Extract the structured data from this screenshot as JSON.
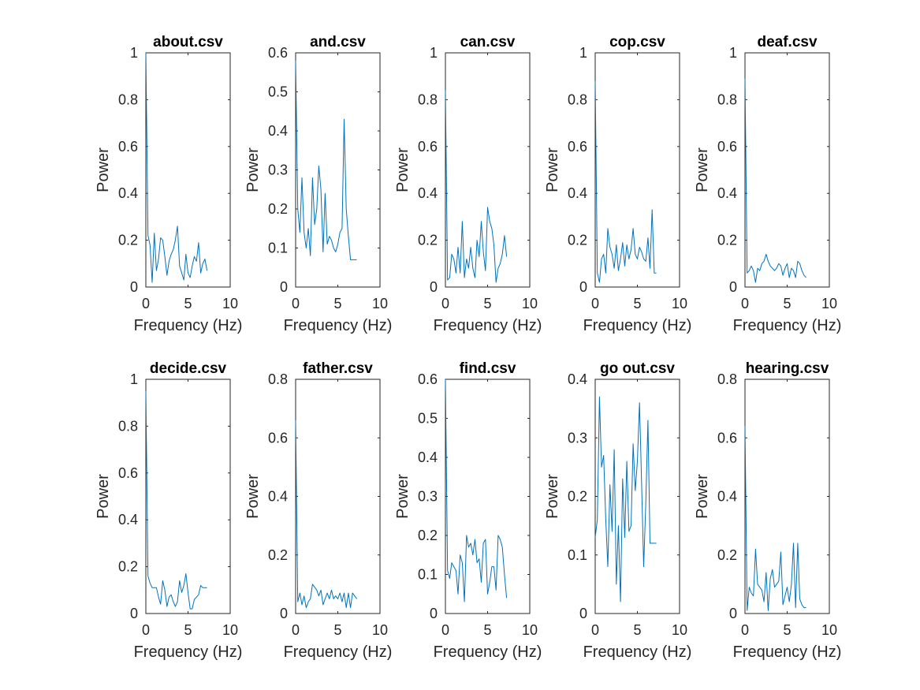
{
  "colors": {
    "line": "#0072BD",
    "axis": "#262626",
    "background": "#ffffff"
  },
  "chart_data": [
    {
      "type": "line",
      "title": "about.csv",
      "xlabel": "Frequency (Hz)",
      "ylabel": "Power",
      "xlim": [
        0,
        10
      ],
      "ylim": [
        0,
        1
      ],
      "xticks": [
        0,
        5,
        10
      ],
      "xtick_labels": [
        "0",
        "5",
        "10"
      ],
      "yticks": [
        0,
        0.2,
        0.4,
        0.6,
        0.8,
        1
      ],
      "ytick_labels": [
        "0",
        "0.2",
        "0.4",
        "0.6",
        "0.8",
        "1"
      ],
      "grid": false,
      "series": [
        {
          "x": [
            0,
            0.25,
            0.5,
            0.75,
            1.0,
            1.25,
            1.5,
            1.75,
            2.0,
            2.25,
            2.5,
            2.75,
            3.0,
            3.25,
            3.5,
            3.75,
            4.0,
            4.25,
            4.5,
            4.75,
            5.0,
            5.25,
            5.5,
            5.75,
            6.0,
            6.25,
            6.5,
            6.75,
            7.0,
            7.25
          ],
          "y": [
            1.0,
            0.22,
            0.18,
            0.02,
            0.23,
            0.07,
            0.12,
            0.21,
            0.2,
            0.13,
            0.05,
            0.11,
            0.14,
            0.16,
            0.2,
            0.26,
            0.09,
            0.06,
            0.03,
            0.14,
            0.06,
            0.04,
            0.09,
            0.13,
            0.11,
            0.19,
            0.06,
            0.1,
            0.12,
            0.07
          ]
        }
      ]
    },
    {
      "type": "line",
      "title": "and.csv",
      "xlabel": "Frequency (Hz)",
      "ylabel": "Power",
      "xlim": [
        0,
        10
      ],
      "ylim": [
        0,
        0.6
      ],
      "xticks": [
        0,
        5,
        10
      ],
      "xtick_labels": [
        "0",
        "5",
        "10"
      ],
      "yticks": [
        0,
        0.1,
        0.2,
        0.3,
        0.4,
        0.5,
        0.6
      ],
      "ytick_labels": [
        "0",
        "0.1",
        "0.2",
        "0.3",
        "0.4",
        "0.5",
        "0.6"
      ],
      "grid": false,
      "series": [
        {
          "x": [
            0,
            0.25,
            0.5,
            0.75,
            1.0,
            1.25,
            1.5,
            1.75,
            2.0,
            2.25,
            2.5,
            2.75,
            3.0,
            3.25,
            3.5,
            3.75,
            4.0,
            4.25,
            4.5,
            4.75,
            5.0,
            5.25,
            5.5,
            5.75,
            6.0,
            6.25,
            6.5,
            6.75,
            7.0,
            7.25
          ],
          "y": [
            0.58,
            0.2,
            0.14,
            0.28,
            0.14,
            0.1,
            0.15,
            0.08,
            0.28,
            0.16,
            0.2,
            0.31,
            0.25,
            0.09,
            0.24,
            0.11,
            0.13,
            0.12,
            0.1,
            0.09,
            0.11,
            0.14,
            0.15,
            0.43,
            0.2,
            0.13,
            0.07,
            0.07,
            0.07,
            0.07
          ]
        }
      ]
    },
    {
      "type": "line",
      "title": "can.csv",
      "xlabel": "Frequency (Hz)",
      "ylabel": "Power",
      "xlim": [
        0,
        10
      ],
      "ylim": [
        0,
        1
      ],
      "xticks": [
        0,
        5,
        10
      ],
      "xtick_labels": [
        "0",
        "5",
        "10"
      ],
      "yticks": [
        0,
        0.2,
        0.4,
        0.6,
        0.8,
        1
      ],
      "ytick_labels": [
        "0",
        "0.2",
        "0.4",
        "0.6",
        "0.8",
        "1"
      ],
      "grid": false,
      "series": [
        {
          "x": [
            0,
            0.25,
            0.5,
            0.75,
            1.0,
            1.25,
            1.5,
            1.75,
            2.0,
            2.25,
            2.5,
            2.75,
            3.0,
            3.25,
            3.5,
            3.75,
            4.0,
            4.25,
            4.5,
            4.75,
            5.0,
            5.25,
            5.5,
            5.75,
            6.0,
            6.25,
            6.5,
            6.75,
            7.0,
            7.25
          ],
          "y": [
            0.84,
            0.03,
            0.04,
            0.14,
            0.12,
            0.06,
            0.17,
            0.06,
            0.28,
            0.04,
            0.12,
            0.08,
            0.17,
            0.08,
            0.04,
            0.2,
            0.13,
            0.28,
            0.15,
            0.07,
            0.34,
            0.28,
            0.25,
            0.18,
            0.02,
            0.08,
            0.1,
            0.14,
            0.22,
            0.13
          ]
        }
      ]
    },
    {
      "type": "line",
      "title": "cop.csv",
      "xlabel": "Frequency (Hz)",
      "ylabel": "Power",
      "xlim": [
        0,
        10
      ],
      "ylim": [
        0,
        1
      ],
      "xticks": [
        0,
        5,
        10
      ],
      "xtick_labels": [
        "0",
        "5",
        "10"
      ],
      "yticks": [
        0,
        0.2,
        0.4,
        0.6,
        0.8,
        1
      ],
      "ytick_labels": [
        "0",
        "0.2",
        "0.4",
        "0.6",
        "0.8",
        "1"
      ],
      "grid": false,
      "series": [
        {
          "x": [
            0,
            0.25,
            0.5,
            0.75,
            1.0,
            1.25,
            1.5,
            1.75,
            2.0,
            2.25,
            2.5,
            2.75,
            3.0,
            3.25,
            3.5,
            3.75,
            4.0,
            4.25,
            4.5,
            4.75,
            5.0,
            5.25,
            5.5,
            5.75,
            6.0,
            6.25,
            6.5,
            6.75,
            7.0,
            7.25
          ],
          "y": [
            0.88,
            0.06,
            0.02,
            0.12,
            0.14,
            0.06,
            0.25,
            0.17,
            0.14,
            0.08,
            0.18,
            0.07,
            0.12,
            0.19,
            0.09,
            0.18,
            0.12,
            0.16,
            0.25,
            0.14,
            0.12,
            0.17,
            0.15,
            0.12,
            0.11,
            0.21,
            0.08,
            0.33,
            0.06,
            0.06
          ]
        }
      ]
    },
    {
      "type": "line",
      "title": "deaf.csv",
      "xlabel": "Frequency (Hz)",
      "ylabel": "Power",
      "xlim": [
        0,
        10
      ],
      "ylim": [
        0,
        1
      ],
      "xticks": [
        0,
        5,
        10
      ],
      "xtick_labels": [
        "0",
        "5",
        "10"
      ],
      "yticks": [
        0,
        0.2,
        0.4,
        0.6,
        0.8,
        1
      ],
      "ytick_labels": [
        "0",
        "0.2",
        "0.4",
        "0.6",
        "0.8",
        "1"
      ],
      "grid": false,
      "series": [
        {
          "x": [
            0,
            0.25,
            0.5,
            0.75,
            1.0,
            1.25,
            1.5,
            1.75,
            2.0,
            2.25,
            2.5,
            2.75,
            3.0,
            3.25,
            3.5,
            3.75,
            4.0,
            4.25,
            4.5,
            4.75,
            5.0,
            5.25,
            5.5,
            5.75,
            6.0,
            6.25,
            6.5,
            6.75,
            7.0,
            7.25
          ],
          "y": [
            0.89,
            0.06,
            0.07,
            0.09,
            0.07,
            0.02,
            0.08,
            0.07,
            0.1,
            0.11,
            0.14,
            0.11,
            0.09,
            0.08,
            0.07,
            0.08,
            0.1,
            0.09,
            0.05,
            0.08,
            0.1,
            0.04,
            0.08,
            0.07,
            0.04,
            0.11,
            0.1,
            0.07,
            0.05,
            0.04
          ]
        }
      ]
    },
    {
      "type": "line",
      "title": "decide.csv",
      "xlabel": "Frequency (Hz)",
      "ylabel": "Power",
      "xlim": [
        0,
        10
      ],
      "ylim": [
        0,
        1
      ],
      "xticks": [
        0,
        5,
        10
      ],
      "xtick_labels": [
        "0",
        "5",
        "10"
      ],
      "yticks": [
        0,
        0.2,
        0.4,
        0.6,
        0.8,
        1
      ],
      "ytick_labels": [
        "0",
        "0.2",
        "0.4",
        "0.6",
        "0.8",
        "1"
      ],
      "grid": false,
      "series": [
        {
          "x": [
            0,
            0.25,
            0.5,
            0.75,
            1.0,
            1.25,
            1.5,
            1.75,
            2.0,
            2.25,
            2.5,
            2.75,
            3.0,
            3.25,
            3.5,
            3.75,
            4.0,
            4.25,
            4.5,
            4.75,
            5.0,
            5.25,
            5.5,
            5.75,
            6.0,
            6.25,
            6.5,
            6.75,
            7.0,
            7.25
          ],
          "y": [
            0.95,
            0.16,
            0.13,
            0.11,
            0.11,
            0.11,
            0.07,
            0.04,
            0.14,
            0.1,
            0.03,
            0.07,
            0.08,
            0.05,
            0.03,
            0.05,
            0.14,
            0.09,
            0.12,
            0.17,
            0.09,
            0.02,
            0.02,
            0.06,
            0.07,
            0.08,
            0.12,
            0.11,
            0.11,
            0.11
          ]
        }
      ]
    },
    {
      "type": "line",
      "title": "father.csv",
      "xlabel": "Frequency (Hz)",
      "ylabel": "Power",
      "xlim": [
        0,
        10
      ],
      "ylim": [
        0,
        0.8
      ],
      "xticks": [
        0,
        5,
        10
      ],
      "xtick_labels": [
        "0",
        "5",
        "10"
      ],
      "yticks": [
        0,
        0.2,
        0.4,
        0.6,
        0.8
      ],
      "ytick_labels": [
        "0",
        "0.2",
        "0.4",
        "0.6",
        "0.8"
      ],
      "grid": false,
      "series": [
        {
          "x": [
            0,
            0.25,
            0.5,
            0.75,
            1.0,
            1.25,
            1.5,
            1.75,
            2.0,
            2.25,
            2.5,
            2.75,
            3.0,
            3.25,
            3.5,
            3.75,
            4.0,
            4.25,
            4.5,
            4.75,
            5.0,
            5.25,
            5.5,
            5.75,
            6.0,
            6.25,
            6.5,
            6.75,
            7.0,
            7.25
          ],
          "y": [
            0.66,
            0.04,
            0.07,
            0.03,
            0.06,
            0.02,
            0.04,
            0.05,
            0.1,
            0.09,
            0.08,
            0.06,
            0.08,
            0.03,
            0.05,
            0.07,
            0.05,
            0.08,
            0.05,
            0.06,
            0.05,
            0.07,
            0.04,
            0.07,
            0.02,
            0.07,
            0.02,
            0.07,
            0.06,
            0.05
          ]
        }
      ]
    },
    {
      "type": "line",
      "title": "find.csv",
      "xlabel": "Frequency (Hz)",
      "ylabel": "Power",
      "xlim": [
        0,
        10
      ],
      "ylim": [
        0,
        0.6
      ],
      "xticks": [
        0,
        5,
        10
      ],
      "xtick_labels": [
        "0",
        "5",
        "10"
      ],
      "yticks": [
        0,
        0.1,
        0.2,
        0.3,
        0.4,
        0.5,
        0.6
      ],
      "ytick_labels": [
        "0",
        "0.1",
        "0.2",
        "0.3",
        "0.4",
        "0.5",
        "0.6"
      ],
      "grid": false,
      "series": [
        {
          "x": [
            0,
            0.25,
            0.5,
            0.75,
            1.0,
            1.25,
            1.5,
            1.75,
            2.0,
            2.25,
            2.5,
            2.75,
            3.0,
            3.25,
            3.5,
            3.75,
            4.0,
            4.25,
            4.5,
            4.75,
            5.0,
            5.25,
            5.5,
            5.75,
            6.0,
            6.25,
            6.5,
            6.75,
            7.0,
            7.25
          ],
          "y": [
            0.6,
            0.11,
            0.09,
            0.13,
            0.12,
            0.11,
            0.05,
            0.15,
            0.13,
            0.03,
            0.2,
            0.17,
            0.18,
            0.15,
            0.19,
            0.13,
            0.14,
            0.08,
            0.18,
            0.19,
            0.05,
            0.08,
            0.12,
            0.12,
            0.06,
            0.2,
            0.19,
            0.17,
            0.1,
            0.04
          ]
        }
      ]
    },
    {
      "type": "line",
      "title": "go out.csv",
      "xlabel": "Frequency (Hz)",
      "ylabel": "Power",
      "xlim": [
        0,
        10
      ],
      "ylim": [
        0,
        0.4
      ],
      "xticks": [
        0,
        5,
        10
      ],
      "xtick_labels": [
        "0",
        "5",
        "10"
      ],
      "yticks": [
        0,
        0.1,
        0.2,
        0.3,
        0.4
      ],
      "ytick_labels": [
        "0",
        "0.1",
        "0.2",
        "0.3",
        "0.4"
      ],
      "grid": false,
      "series": [
        {
          "x": [
            0,
            0.25,
            0.5,
            0.75,
            1.0,
            1.25,
            1.5,
            1.75,
            2.0,
            2.25,
            2.5,
            2.75,
            3.0,
            3.25,
            3.5,
            3.75,
            4.0,
            4.25,
            4.5,
            4.75,
            5.0,
            5.25,
            5.5,
            5.75,
            6.0,
            6.25,
            6.5,
            6.75,
            7.0,
            7.25
          ],
          "y": [
            0.13,
            0.16,
            0.37,
            0.25,
            0.27,
            0.16,
            0.08,
            0.22,
            0.14,
            0.28,
            0.05,
            0.15,
            0.02,
            0.23,
            0.13,
            0.26,
            0.14,
            0.15,
            0.29,
            0.21,
            0.26,
            0.36,
            0.22,
            0.08,
            0.19,
            0.33,
            0.12,
            0.12,
            0.12,
            0.12
          ]
        }
      ]
    },
    {
      "type": "line",
      "title": "hearing.csv",
      "xlabel": "Frequency (Hz)",
      "ylabel": "Power",
      "xlim": [
        0,
        10
      ],
      "ylim": [
        0,
        0.8
      ],
      "xticks": [
        0,
        5,
        10
      ],
      "xtick_labels": [
        "0",
        "5",
        "10"
      ],
      "yticks": [
        0,
        0.2,
        0.4,
        0.6,
        0.8
      ],
      "ytick_labels": [
        "0",
        "0.2",
        "0.4",
        "0.6",
        "0.8"
      ],
      "grid": false,
      "series": [
        {
          "x": [
            0,
            0.25,
            0.5,
            0.75,
            1.0,
            1.25,
            1.5,
            1.75,
            2.0,
            2.25,
            2.5,
            2.75,
            3.0,
            3.25,
            3.5,
            3.75,
            4.0,
            4.25,
            4.5,
            4.75,
            5.0,
            5.25,
            5.5,
            5.75,
            6.0,
            6.25,
            6.5,
            6.75,
            7.0,
            7.25
          ],
          "y": [
            0.64,
            0.01,
            0.09,
            0.07,
            0.06,
            0.22,
            0.1,
            0.09,
            0.08,
            0.04,
            0.14,
            0.01,
            0.12,
            0.15,
            0.09,
            0.1,
            0.11,
            0.21,
            0.03,
            0.06,
            0.09,
            0.04,
            0.1,
            0.24,
            0.02,
            0.24,
            0.05,
            0.03,
            0.02,
            0.02
          ]
        }
      ]
    }
  ]
}
